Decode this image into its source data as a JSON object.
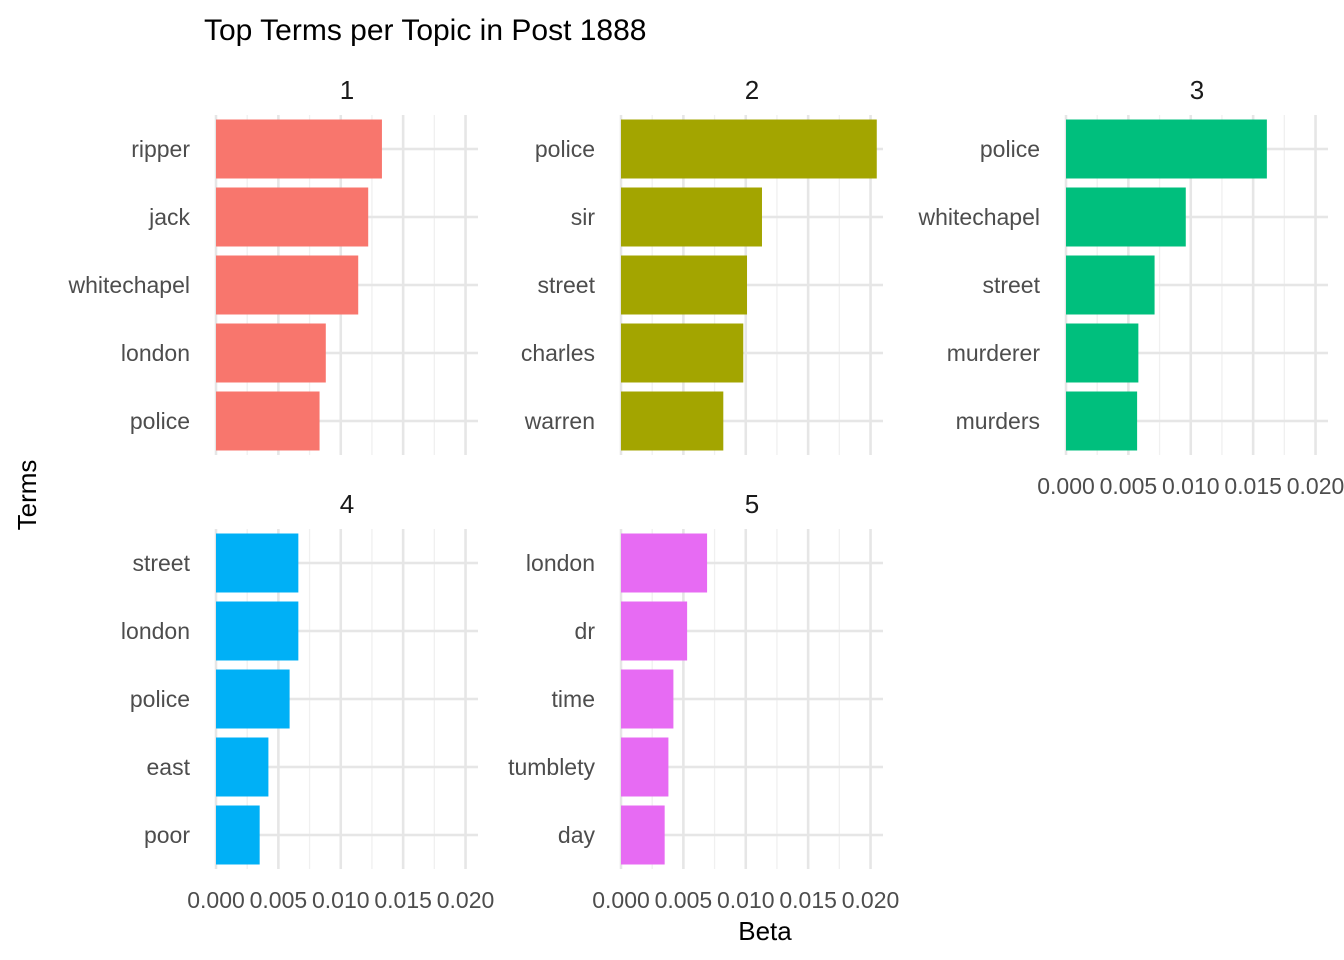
{
  "chart_data": {
    "type": "bar",
    "orientation": "horizontal",
    "title": "Top Terms per Topic in Post 1888",
    "xlabel": "Beta",
    "ylabel": "Terms",
    "xlim": [
      0,
      0.021
    ],
    "x_ticks": [
      "0.000",
      "0.005",
      "0.010",
      "0.015",
      "0.020"
    ],
    "x_tick_values": [
      0,
      0.005,
      0.01,
      0.015,
      0.02
    ],
    "grid": true,
    "legend": "none",
    "facets": [
      {
        "label": "1",
        "color": "#F8766D",
        "terms": [
          "ripper",
          "jack",
          "whitechapel",
          "london",
          "police"
        ],
        "values": [
          0.0133,
          0.0122,
          0.0114,
          0.0088,
          0.0083
        ]
      },
      {
        "label": "2",
        "color": "#A3A500",
        "terms": [
          "police",
          "sir",
          "street",
          "charles",
          "warren"
        ],
        "values": [
          0.0205,
          0.0113,
          0.0101,
          0.0098,
          0.0082
        ]
      },
      {
        "label": "3",
        "color": "#00BF7D",
        "terms": [
          "police",
          "whitechapel",
          "street",
          "murderer",
          "murders"
        ],
        "values": [
          0.0161,
          0.0096,
          0.0071,
          0.0058,
          0.0057
        ]
      },
      {
        "label": "4",
        "color": "#00B0F6",
        "terms": [
          "street",
          "london",
          "police",
          "east",
          "poor"
        ],
        "values": [
          0.0066,
          0.0066,
          0.0059,
          0.0042,
          0.0035
        ]
      },
      {
        "label": "5",
        "color": "#E76BF3",
        "terms": [
          "london",
          "dr",
          "time",
          "tumblety",
          "day"
        ],
        "values": [
          0.0069,
          0.0053,
          0.0042,
          0.0038,
          0.0035
        ]
      }
    ]
  }
}
